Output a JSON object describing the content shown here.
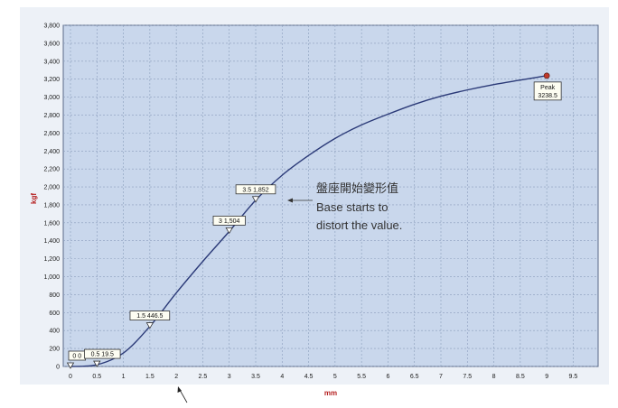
{
  "chart_data": {
    "type": "line",
    "title": "",
    "xlabel": "mm",
    "ylabel": "kgf",
    "xlim": [
      0,
      9.8
    ],
    "ylim": [
      0,
      3800
    ],
    "x_ticks": [
      "0",
      "0.5",
      "1",
      "1.5",
      "2",
      "2.5",
      "3",
      "3.5",
      "4",
      "4.5",
      "5",
      "5.5",
      "6",
      "6.5",
      "7",
      "7.5",
      "8",
      "8.5",
      "9",
      "9.5"
    ],
    "y_ticks": [
      "0",
      "200",
      "400",
      "600",
      "800",
      "1,000",
      "1,200",
      "1,400",
      "1,600",
      "1,800",
      "2,000",
      "2,200",
      "2,400",
      "2,600",
      "2,800",
      "3,000",
      "3,200",
      "3,400",
      "3,600",
      "3,800"
    ],
    "grid": true,
    "series": [
      {
        "x": [
          0,
          0.5,
          1.0,
          1.5,
          2.0,
          2.5,
          3.0,
          3.5,
          4.0,
          4.5,
          5.0,
          5.5,
          6.0,
          6.5,
          7.0,
          7.5,
          8.0,
          8.5,
          9.0
        ],
        "y": [
          0,
          19.5,
          150,
          446.5,
          820,
          1170,
          1504,
          1852,
          2130,
          2350,
          2540,
          2690,
          2810,
          2920,
          3010,
          3080,
          3140,
          3190,
          3238.5
        ]
      }
    ],
    "markers": [
      {
        "x": 0,
        "y": 0,
        "label": "0 0"
      },
      {
        "x": 0.5,
        "y": 19.5,
        "label": "0.5 19.5"
      },
      {
        "x": 1.5,
        "y": 446.5,
        "label": "1.5 446.5"
      },
      {
        "x": 3,
        "y": 1504,
        "label": "3 1,504"
      },
      {
        "x": 3.5,
        "y": 1852,
        "label": "3.5 1,852"
      }
    ],
    "peak": {
      "x": 9,
      "y": 3238.5,
      "label_line1": "Peak",
      "label_line2": "3238.5"
    },
    "annotation": {
      "line1": "盤座開始變形值",
      "line2": "Base starts to",
      "line3": "distort the value."
    },
    "colors": {
      "curve": "#2b3a78",
      "plot_bg": "#c9d7ec",
      "grid": "#8a9dbb",
      "axis_title": "#b52020",
      "peak": "#c0392b"
    }
  }
}
